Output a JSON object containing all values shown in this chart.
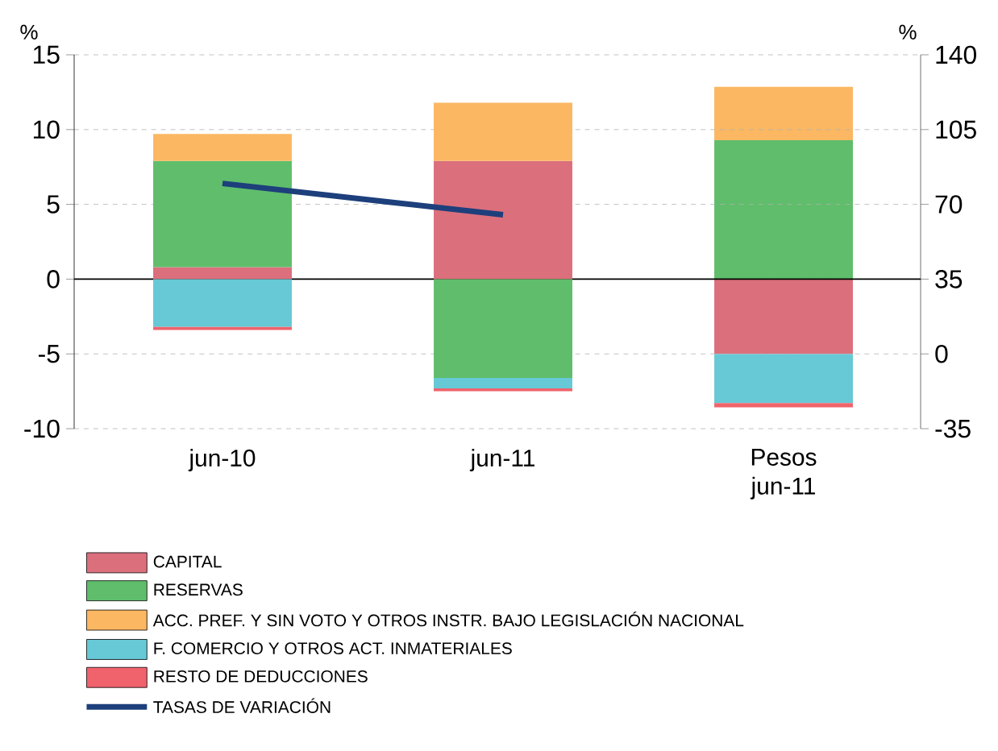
{
  "chart_data": {
    "type": "bar",
    "stacked": true,
    "categories": [
      "jun-10",
      "jun-11",
      "Pesos jun-11"
    ],
    "ylabel": "%",
    "ylim": [
      -10,
      15
    ],
    "yticks": [
      -10,
      -5,
      0,
      5,
      10,
      15
    ],
    "y2label": "%",
    "y2lim": [
      -35,
      140
    ],
    "y2ticks": [
      -35,
      0,
      35,
      70,
      105,
      140
    ],
    "grid": "y",
    "legend": "bottom",
    "series": [
      {
        "name": "CAPITAL",
        "color": "#db6f7c",
        "values": [
          0.8,
          7.9,
          null
        ]
      },
      {
        "name": "RESERVAS",
        "color": "#5fbd6b",
        "values": [
          7.1,
          -6.6,
          null
        ]
      },
      {
        "name": "ACC. PREF. Y SIN VOTO Y OTROS INSTR. BAJO LEGISLACIÓN NACIONAL",
        "color": "#fbb762",
        "values": [
          1.8,
          3.9,
          null
        ]
      },
      {
        "name": "F. COMERCIO Y OTROS ACT. INMATERIALES",
        "color": "#67c8d6",
        "values": [
          -3.2,
          -0.7,
          null
        ]
      },
      {
        "name": "RESTO DE DEDUCCIONES",
        "color": "#f0636c",
        "values": [
          -0.2,
          -0.2,
          null
        ]
      },
      {
        "color": "#db6f7c",
        "axis": "y2",
        "values": [
          null,
          null,
          35
        ]
      },
      {
        "color": "#5fbd6b",
        "axis": "y2",
        "values": [
          null,
          null,
          65
        ]
      },
      {
        "color": "#fbb762",
        "axis": "y2",
        "values": [
          null,
          null,
          25
        ]
      },
      {
        "color": "#67c8d6",
        "axis": "y2",
        "values": [
          null,
          null,
          -23
        ]
      },
      {
        "color": "#f0636c",
        "axis": "y2",
        "values": [
          null,
          null,
          -2
        ]
      },
      {
        "name": "TASAS DE VARIACIÓN",
        "type": "line",
        "color": "#1d3f7c",
        "values": [
          6.4,
          4.3,
          null
        ]
      }
    ]
  }
}
